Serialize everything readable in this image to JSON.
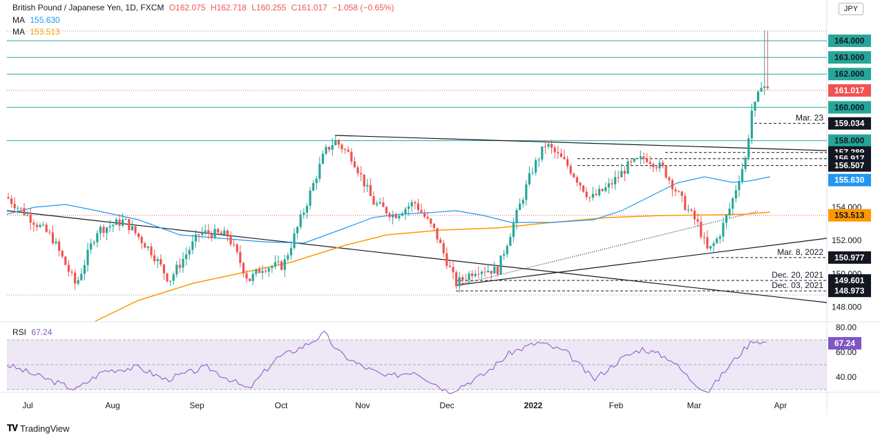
{
  "header": {
    "symbol": "British Pound / Japanese Yen, 1D, FXCM",
    "open": "O162.075",
    "high": "H162.718",
    "low": "L160.255",
    "close": "C161.017",
    "change": "−1.058 (−0.65%)",
    "ma1_label": "MA",
    "ma1_value": "155.630",
    "ma2_label": "MA",
    "ma2_value": "153.513",
    "rsi_label": "RSI",
    "rsi_value": "67.24",
    "currency": "JPY"
  },
  "brand": {
    "name": "TradingView"
  },
  "colors": {
    "up": "#26a69a",
    "down": "#ef5350",
    "ma_fast": "#2196f3",
    "ma_slow": "#ff9800",
    "level": "#26a69a",
    "rsi": "#7e57c2",
    "rsi_band": "#ede7f6",
    "trend": "#131722"
  },
  "chart_data": {
    "type": "candlestick",
    "ylim": [
      147.5,
      166.0
    ],
    "x_labels": [
      "Jul",
      "Aug",
      "Sep",
      "Oct",
      "Nov",
      "Dec",
      "2022",
      "Feb",
      "Mar",
      "Apr"
    ],
    "y_ticks": [
      "154.000",
      "152.000",
      "150.000",
      "148.000"
    ],
    "horizontal_levels": [
      164.0,
      163.0,
      162.0,
      160.0,
      158.0
    ],
    "level_labels": [
      "164.000",
      "163.000",
      "162.000",
      "160.000",
      "158.000"
    ],
    "dashed_levels": [
      {
        "value": 159.034,
        "label": "159.034",
        "note": "Mar. 23"
      },
      {
        "value": 157.289,
        "label": "157.289",
        "note": ""
      },
      {
        "value": 156.917,
        "label": "156.917",
        "note": ""
      },
      {
        "value": 156.507,
        "label": "156.507",
        "note": ""
      },
      {
        "value": 150.977,
        "label": "150.977",
        "note": "Mar. 8, 2022"
      },
      {
        "value": 149.601,
        "label": "149.601",
        "note": "Dec. 20, 2021"
      },
      {
        "value": 148.973,
        "label": "148.973",
        "note": "Dec. 03, 2021"
      }
    ],
    "last_price": {
      "value": 161.017,
      "label": "161.017"
    },
    "ma_fast_label": {
      "value": 155.63,
      "label": "155.630"
    },
    "ma_slow_label": {
      "value": 153.513,
      "label": "153.513"
    },
    "rsi": {
      "ylim": [
        25,
        85
      ],
      "ticks": [
        "80.00",
        "60.00",
        "40.00"
      ],
      "bands": [
        70,
        50,
        30
      ],
      "last": {
        "value": 67.24,
        "label": "67.24"
      }
    }
  }
}
